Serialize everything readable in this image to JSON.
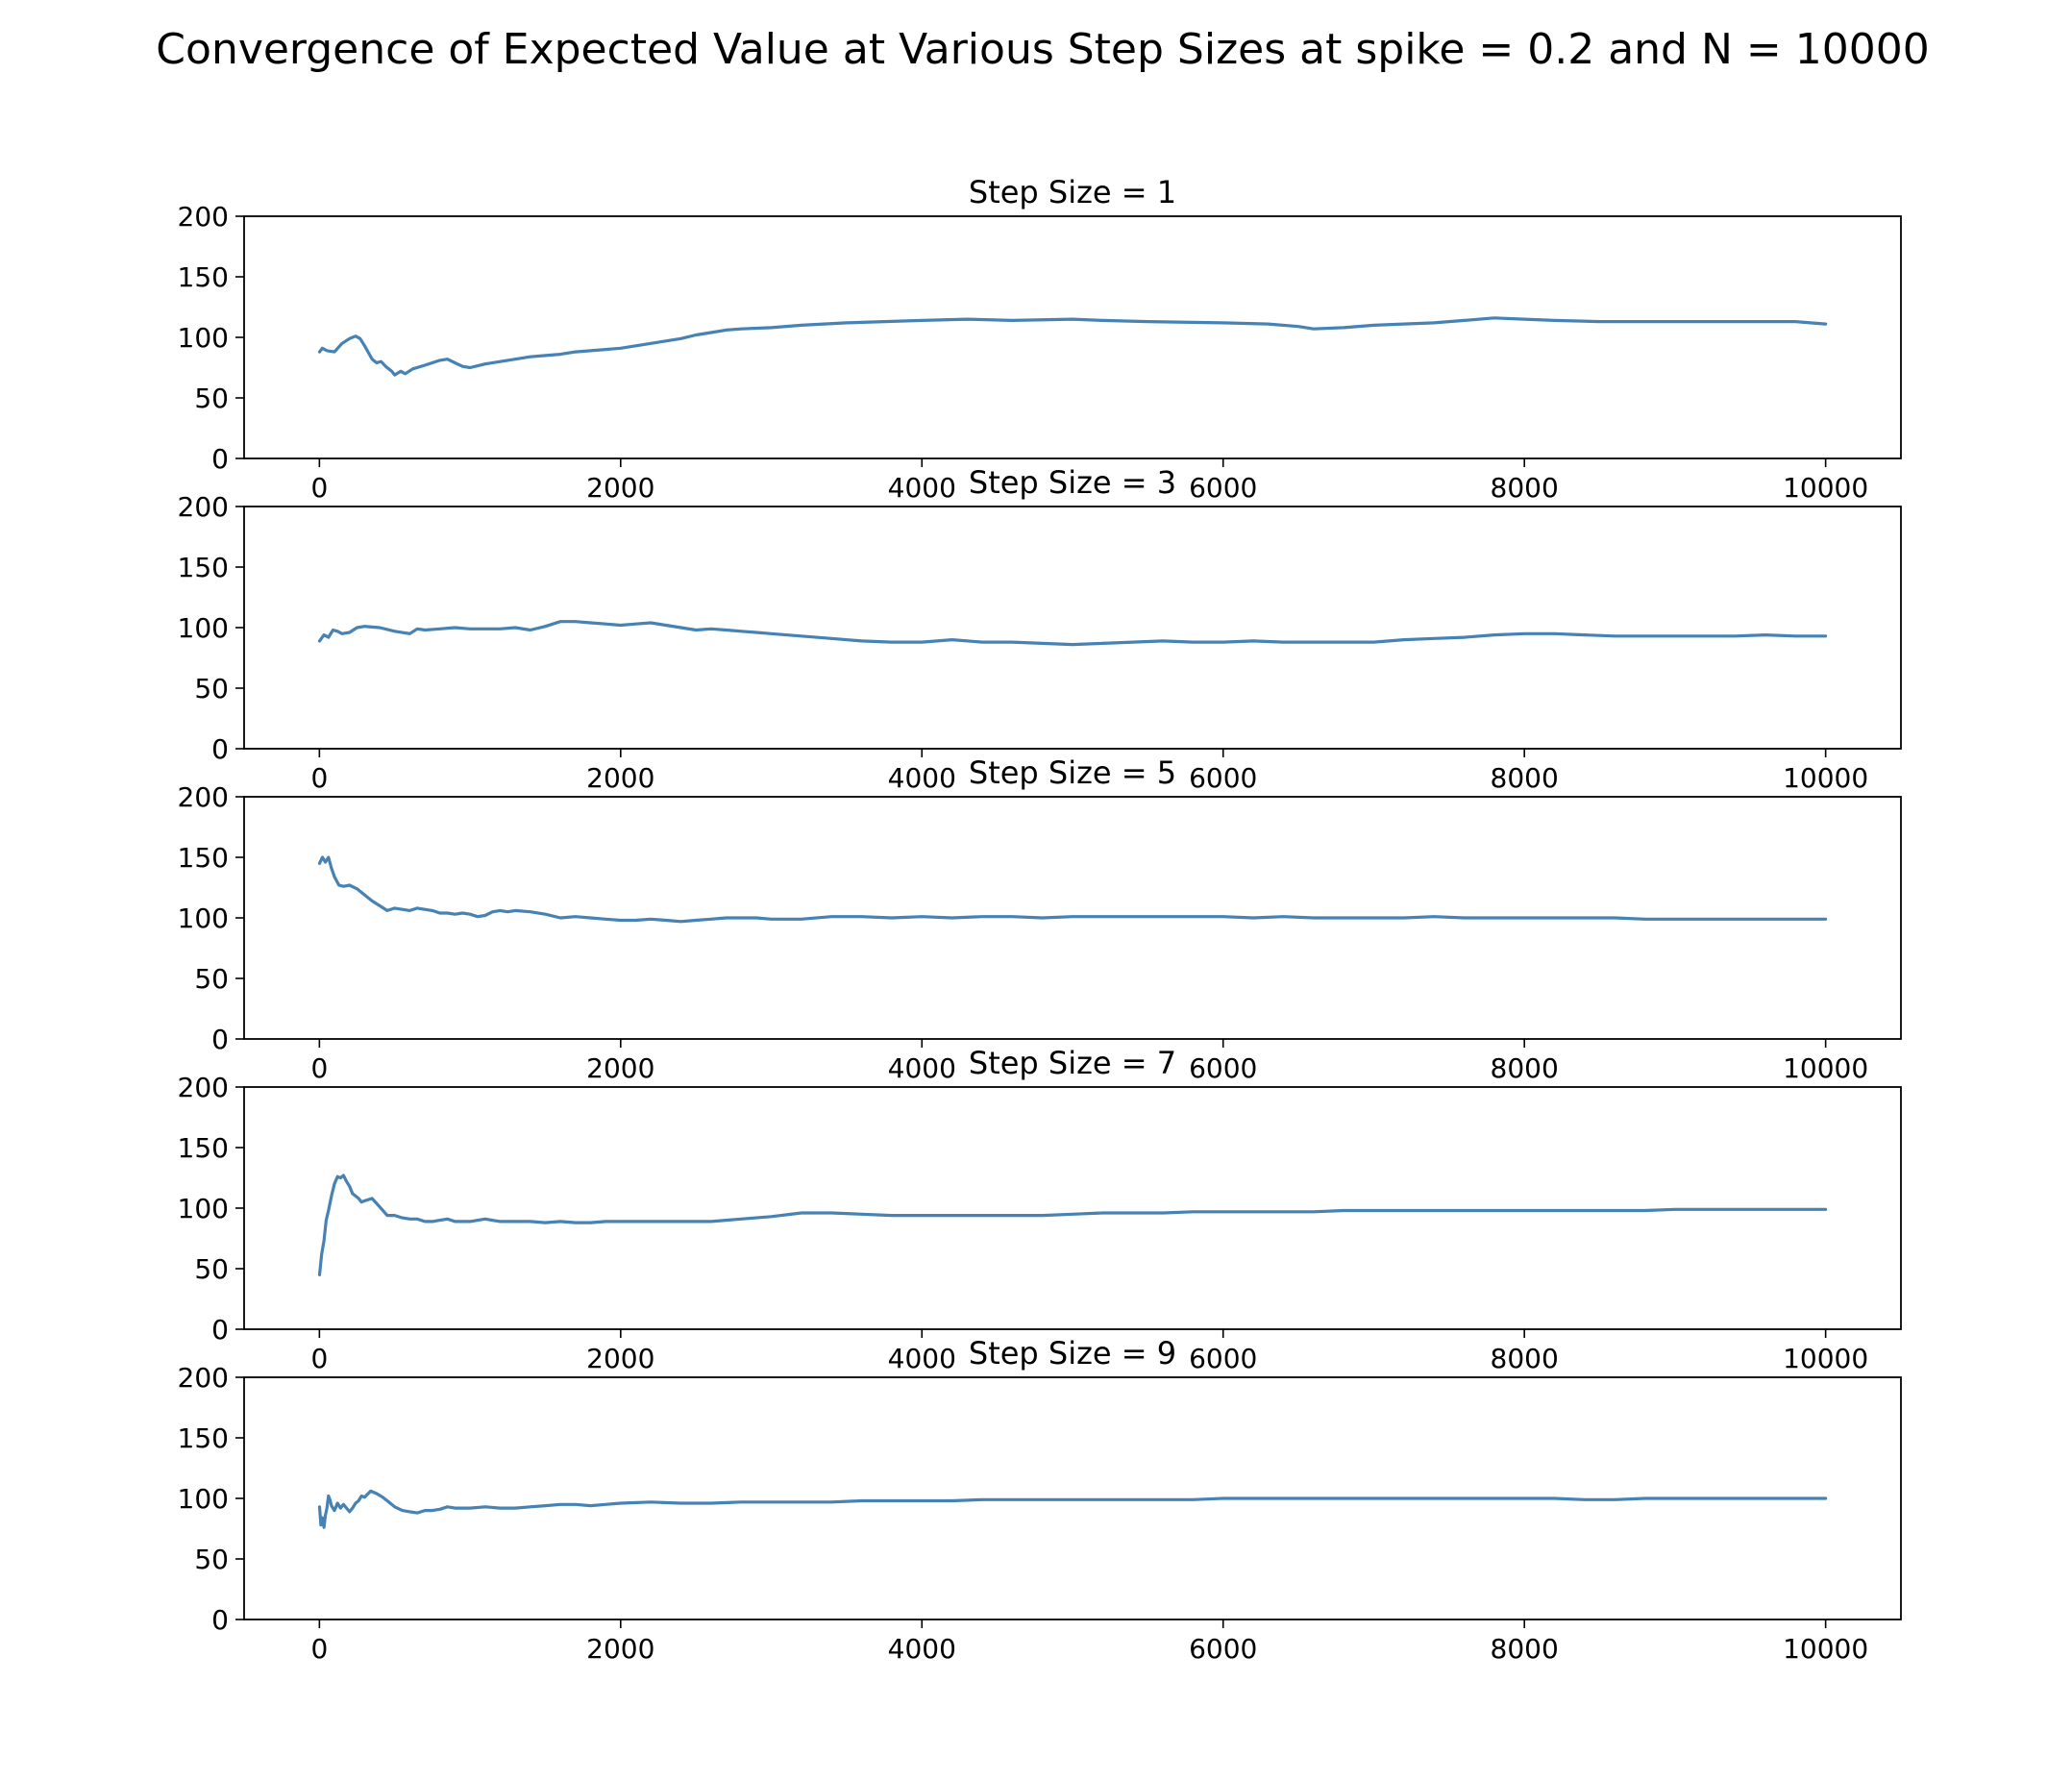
{
  "figure": {
    "title": "Convergence of Expected Value at Various Step Sizes at spike = 0.2 and N = 10000",
    "line_color": "#4682b4"
  },
  "chart_data": [
    {
      "type": "line",
      "title": "Step Size = 1",
      "xlabel": "",
      "ylabel": "",
      "xlim": [
        -500,
        10500
      ],
      "ylim": [
        0,
        200
      ],
      "xticks": [
        0,
        2000,
        4000,
        6000,
        8000,
        10000
      ],
      "yticks": [
        0,
        50,
        100,
        150,
        200
      ],
      "grid": false,
      "series": [
        {
          "color": "#4682b4",
          "x": [
            1,
            20,
            50,
            100,
            150,
            200,
            240,
            270,
            300,
            350,
            380,
            410,
            440,
            480,
            500,
            540,
            570,
            620,
            700,
            800,
            850,
            900,
            950,
            1000,
            1100,
            1200,
            1300,
            1400,
            1500,
            1600,
            1700,
            1800,
            1900,
            2000,
            2100,
            2200,
            2300,
            2400,
            2500,
            2600,
            2700,
            2800,
            3000,
            3200,
            3500,
            4000,
            4300,
            4600,
            5000,
            5200,
            5500,
            6000,
            6300,
            6500,
            6600,
            6800,
            7000,
            7200,
            7400,
            7600,
            7800,
            8000,
            8200,
            8500,
            9000,
            9500,
            9800,
            10000
          ],
          "y": [
            88,
            91,
            89,
            88,
            95,
            99,
            101,
            99,
            93,
            82,
            79,
            80,
            76,
            72,
            69,
            72,
            70,
            74,
            77,
            81,
            82,
            79,
            76,
            75,
            78,
            80,
            82,
            84,
            85,
            86,
            88,
            89,
            90,
            91,
            93,
            95,
            97,
            99,
            102,
            104,
            106,
            107,
            108,
            110,
            112,
            114,
            115,
            114,
            115,
            114,
            113,
            112,
            111,
            109,
            107,
            108,
            110,
            111,
            112,
            114,
            116,
            115,
            114,
            113,
            113,
            113,
            113,
            111
          ]
        }
      ]
    },
    {
      "type": "line",
      "title": "Step Size = 3",
      "xlabel": "",
      "ylabel": "",
      "xlim": [
        -500,
        10500
      ],
      "ylim": [
        0,
        200
      ],
      "xticks": [
        0,
        2000,
        4000,
        6000,
        8000,
        10000
      ],
      "yticks": [
        0,
        50,
        100,
        150,
        200
      ],
      "grid": false,
      "series": [
        {
          "color": "#4682b4",
          "x": [
            1,
            30,
            60,
            90,
            120,
            150,
            200,
            250,
            300,
            400,
            500,
            600,
            650,
            700,
            800,
            900,
            1000,
            1100,
            1200,
            1300,
            1400,
            1500,
            1600,
            1700,
            1800,
            1900,
            2000,
            2100,
            2200,
            2300,
            2400,
            2500,
            2600,
            2700,
            2800,
            2900,
            3000,
            3200,
            3400,
            3600,
            3800,
            4000,
            4200,
            4400,
            4600,
            4800,
            5000,
            5200,
            5400,
            5600,
            5800,
            6000,
            6200,
            6400,
            6600,
            6800,
            7000,
            7200,
            7400,
            7600,
            7800,
            8000,
            8200,
            8400,
            8600,
            8800,
            9000,
            9200,
            9400,
            9600,
            9800,
            10000
          ],
          "y": [
            89,
            94,
            92,
            98,
            97,
            95,
            96,
            100,
            101,
            100,
            97,
            95,
            99,
            98,
            99,
            100,
            99,
            99,
            99,
            100,
            98,
            101,
            105,
            105,
            104,
            103,
            102,
            103,
            104,
            102,
            100,
            98,
            99,
            98,
            97,
            96,
            95,
            93,
            91,
            89,
            88,
            88,
            90,
            88,
            88,
            87,
            86,
            87,
            88,
            89,
            88,
            88,
            89,
            88,
            88,
            88,
            88,
            90,
            91,
            92,
            94,
            95,
            95,
            94,
            93,
            93,
            93,
            93,
            93,
            94,
            93,
            93
          ]
        }
      ]
    },
    {
      "type": "line",
      "title": "Step Size = 5",
      "xlabel": "",
      "ylabel": "",
      "xlim": [
        -500,
        10500
      ],
      "ylim": [
        0,
        200
      ],
      "xticks": [
        0,
        2000,
        4000,
        6000,
        8000,
        10000
      ],
      "yticks": [
        0,
        50,
        100,
        150,
        200
      ],
      "grid": false,
      "series": [
        {
          "color": "#4682b4",
          "x": [
            1,
            20,
            40,
            60,
            80,
            100,
            130,
            160,
            200,
            250,
            300,
            350,
            400,
            450,
            500,
            550,
            600,
            650,
            700,
            750,
            800,
            850,
            900,
            950,
            1000,
            1050,
            1100,
            1150,
            1200,
            1250,
            1300,
            1400,
            1500,
            1600,
            1700,
            1800,
            1900,
            2000,
            2100,
            2200,
            2300,
            2400,
            2500,
            2600,
            2700,
            2800,
            2900,
            3000,
            3200,
            3400,
            3600,
            3800,
            4000,
            4200,
            4400,
            4600,
            4800,
            5000,
            5200,
            5400,
            5600,
            5800,
            6000,
            6200,
            6400,
            6600,
            6800,
            7000,
            7200,
            7400,
            7600,
            7800,
            8000,
            8200,
            8400,
            8600,
            8800,
            9000,
            9200,
            9400,
            9600,
            9800,
            10000
          ],
          "y": [
            145,
            150,
            146,
            150,
            141,
            134,
            127,
            126,
            127,
            124,
            119,
            114,
            110,
            106,
            108,
            107,
            106,
            108,
            107,
            106,
            104,
            104,
            103,
            104,
            103,
            101,
            102,
            105,
            106,
            105,
            106,
            105,
            103,
            100,
            101,
            100,
            99,
            98,
            98,
            99,
            98,
            97,
            98,
            99,
            100,
            100,
            100,
            99,
            99,
            101,
            101,
            100,
            101,
            100,
            101,
            101,
            100,
            101,
            101,
            101,
            101,
            101,
            101,
            100,
            101,
            100,
            100,
            100,
            100,
            101,
            100,
            100,
            100,
            100,
            100,
            100,
            99,
            99,
            99,
            99,
            99,
            99,
            99
          ]
        }
      ]
    },
    {
      "type": "line",
      "title": "Step Size = 7",
      "xlabel": "",
      "ylabel": "",
      "xlim": [
        -500,
        10500
      ],
      "ylim": [
        0,
        200
      ],
      "xticks": [
        0,
        2000,
        4000,
        6000,
        8000,
        10000
      ],
      "yticks": [
        0,
        50,
        100,
        150,
        200
      ],
      "grid": false,
      "series": [
        {
          "color": "#4682b4",
          "x": [
            1,
            15,
            30,
            45,
            60,
            80,
            100,
            120,
            140,
            160,
            180,
            200,
            220,
            240,
            260,
            280,
            300,
            350,
            400,
            450,
            500,
            550,
            600,
            650,
            700,
            750,
            800,
            850,
            900,
            950,
            1000,
            1100,
            1200,
            1300,
            1400,
            1500,
            1600,
            1700,
            1800,
            1900,
            2000,
            2200,
            2400,
            2600,
            2800,
            3000,
            3200,
            3400,
            3600,
            3800,
            4000,
            4200,
            4400,
            4600,
            4800,
            5000,
            5200,
            5400,
            5600,
            5800,
            6000,
            6200,
            6400,
            6600,
            6800,
            7000,
            7200,
            7400,
            7600,
            7800,
            8000,
            8200,
            8400,
            8600,
            8800,
            9000,
            9200,
            9400,
            9600,
            9800,
            10000
          ],
          "y": [
            45,
            62,
            73,
            90,
            98,
            110,
            120,
            126,
            125,
            127,
            122,
            118,
            112,
            110,
            108,
            105,
            106,
            108,
            101,
            94,
            94,
            92,
            91,
            91,
            89,
            89,
            90,
            91,
            89,
            89,
            89,
            91,
            89,
            89,
            89,
            88,
            89,
            88,
            88,
            89,
            89,
            89,
            89,
            89,
            91,
            93,
            96,
            96,
            95,
            94,
            94,
            94,
            94,
            94,
            94,
            95,
            96,
            96,
            96,
            97,
            97,
            97,
            97,
            97,
            98,
            98,
            98,
            98,
            98,
            98,
            98,
            98,
            98,
            98,
            98,
            99,
            99,
            99,
            99,
            99,
            99
          ]
        }
      ]
    },
    {
      "type": "line",
      "title": "Step Size = 9",
      "xlabel": "",
      "ylabel": "",
      "xlim": [
        -500,
        10500
      ],
      "ylim": [
        0,
        200
      ],
      "xticks": [
        0,
        2000,
        4000,
        6000,
        8000,
        10000
      ],
      "yticks": [
        0,
        50,
        100,
        150,
        200
      ],
      "grid": false,
      "series": [
        {
          "color": "#4682b4",
          "x": [
            1,
            10,
            20,
            30,
            40,
            50,
            60,
            70,
            80,
            100,
            120,
            140,
            160,
            180,
            200,
            220,
            240,
            260,
            280,
            300,
            340,
            380,
            420,
            460,
            500,
            550,
            600,
            650,
            700,
            750,
            800,
            850,
            900,
            1000,
            1100,
            1200,
            1300,
            1400,
            1500,
            1600,
            1700,
            1800,
            1900,
            2000,
            2200,
            2400,
            2600,
            2800,
            3000,
            3200,
            3400,
            3600,
            3800,
            4000,
            4200,
            4400,
            4600,
            4800,
            5000,
            5200,
            5400,
            5600,
            5800,
            6000,
            6200,
            6400,
            6600,
            6800,
            7000,
            7200,
            7400,
            7600,
            7800,
            8000,
            8200,
            8400,
            8600,
            8800,
            9000,
            9200,
            9400,
            9600,
            9800,
            10000
          ],
          "y": [
            93,
            78,
            84,
            76,
            86,
            92,
            102,
            99,
            94,
            90,
            96,
            92,
            95,
            92,
            89,
            92,
            96,
            98,
            102,
            101,
            106,
            104,
            101,
            97,
            93,
            90,
            89,
            88,
            90,
            90,
            91,
            93,
            92,
            92,
            93,
            92,
            92,
            93,
            94,
            95,
            95,
            94,
            95,
            96,
            97,
            96,
            96,
            97,
            97,
            97,
            97,
            98,
            98,
            98,
            98,
            99,
            99,
            99,
            99,
            99,
            99,
            99,
            99,
            100,
            100,
            100,
            100,
            100,
            100,
            100,
            100,
            100,
            100,
            100,
            100,
            99,
            99,
            100,
            100,
            100,
            100,
            100,
            100,
            100
          ]
        }
      ]
    }
  ]
}
